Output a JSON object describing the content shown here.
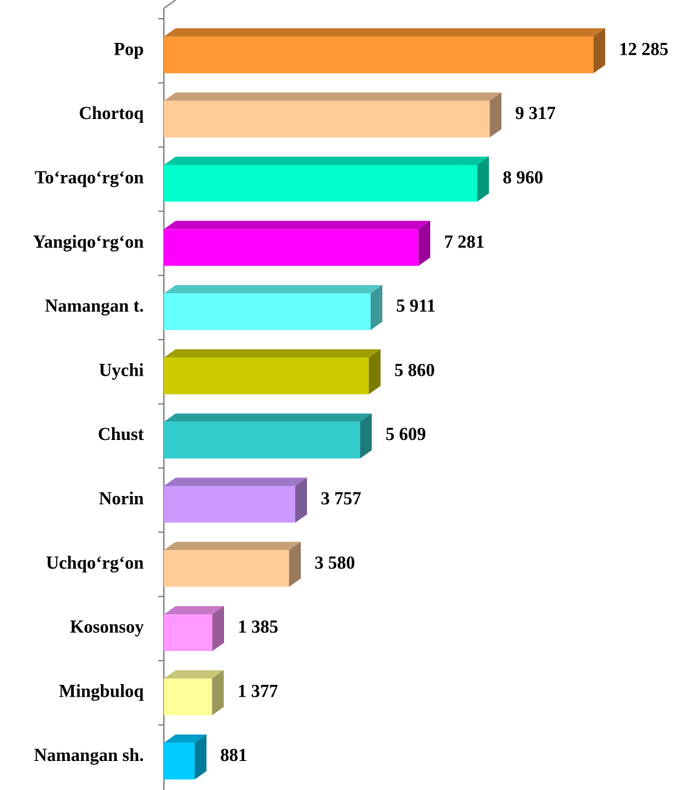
{
  "chart_data": {
    "type": "bar3d-horizontal",
    "categories": [
      "Pop",
      "Chortoq",
      "To‘raqo‘rg‘on",
      "Yangiqo‘rg‘on",
      "Namangan t.",
      "Uychi",
      "Chust",
      "Norin",
      "Uchqo‘rg‘on",
      "Kosonsoy",
      "Mingbuloq",
      "Namangan sh."
    ],
    "values": [
      12285,
      9317,
      8960,
      7281,
      5911,
      5860,
      5609,
      3757,
      3580,
      1385,
      1377,
      881
    ],
    "value_labels": [
      "12 285",
      "9 317",
      "8 960",
      "7 281",
      "5 911",
      "5 860",
      "5 609",
      "3 757",
      "3 580",
      "1 385",
      "1 377",
      "881"
    ],
    "colors": [
      "#ff9933",
      "#ffcc99",
      "#00ffcc",
      "#ff00ff",
      "#66ffff",
      "#cccc00",
      "#33cccc",
      "#cc99ff",
      "#ffcc99",
      "#ff99ff",
      "#ffff99",
      "#00ccff"
    ],
    "xlim": [
      0,
      14000
    ]
  }
}
